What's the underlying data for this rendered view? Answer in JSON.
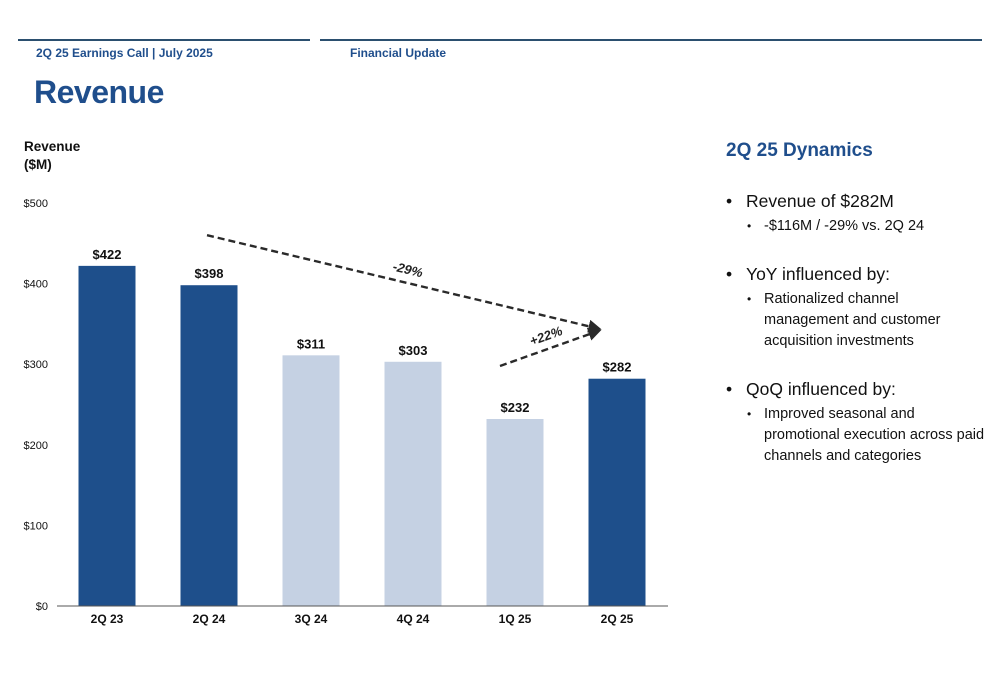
{
  "header": {
    "left": "2Q 25 Earnings Call | July 2025",
    "right": "Financial Update"
  },
  "page_title": "Revenue",
  "chart_data": {
    "type": "bar",
    "title": "",
    "ylabel": [
      "Revenue",
      "($M)"
    ],
    "xlabel": "",
    "categories": [
      "2Q 23",
      "2Q 24",
      "3Q 24",
      "4Q 24",
      "1Q 25",
      "2Q 25"
    ],
    "values": [
      422,
      398,
      311,
      303,
      232,
      282
    ],
    "data_labels": [
      "$422",
      "$398",
      "$311",
      "$303",
      "$232",
      "$282"
    ],
    "ylim": [
      0,
      500
    ],
    "yticks": [
      0,
      100,
      200,
      300,
      400,
      500
    ],
    "ytick_labels": [
      "$0",
      "$100",
      "$200",
      "$300",
      "$400",
      "$500"
    ],
    "grid": false,
    "bar_colors": [
      "#1e4f8b",
      "#1e4f8b",
      "#c5d1e3",
      "#c5d1e3",
      "#c5d1e3",
      "#1e4f8b"
    ],
    "annotations": [
      {
        "text": "-29%",
        "from_category": "2Q 24",
        "to_category": "2Q 25",
        "style": "dashed-arrow"
      },
      {
        "text": "+22%",
        "from_category": "1Q 25",
        "to_category": "2Q 25",
        "style": "dashed-arrow"
      }
    ]
  },
  "panel": {
    "title": "2Q 25 Dynamics",
    "items": [
      {
        "text": "Revenue of $282M",
        "subs": [
          "-$116M / -29% vs. 2Q 24"
        ]
      },
      {
        "text": "YoY influenced by:",
        "subs": [
          "Rationalized channel management and customer acquisition investments"
        ]
      },
      {
        "text": "QoQ influenced by:",
        "subs": [
          "Improved seasonal and promotional execution across paid channels and categories"
        ]
      }
    ]
  }
}
